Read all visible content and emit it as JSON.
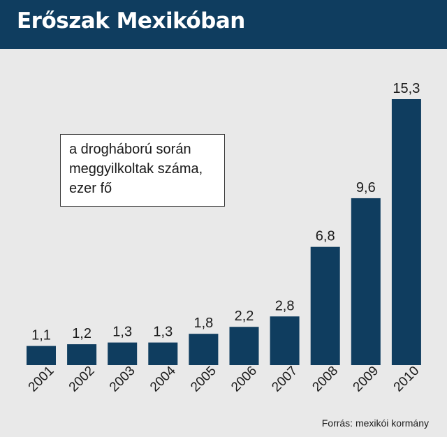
{
  "header": {
    "title": "Erőszak Mexikóban"
  },
  "legend": {
    "lines": [
      "a drogháború során",
      "meggyilkoltak száma,",
      "ezer fő"
    ]
  },
  "source": "Forrás: mexikói kormány",
  "colors": {
    "header_bg": "#0f3d5f",
    "bar": "#0f3d5f",
    "background": "#e9e9e9"
  },
  "chart_data": {
    "type": "bar",
    "categories": [
      "2001",
      "2002",
      "2003",
      "2004",
      "2005",
      "2006",
      "2007",
      "2008",
      "2009",
      "2010"
    ],
    "values": [
      1.1,
      1.2,
      1.3,
      1.3,
      1.8,
      2.2,
      2.8,
      6.8,
      9.6,
      15.3
    ],
    "value_labels": [
      "1,1",
      "1,2",
      "1,3",
      "1,3",
      "1,8",
      "2,2",
      "2,8",
      "6,8",
      "9,6",
      "15,3"
    ],
    "ylim": [
      0,
      15.3
    ],
    "grid": false,
    "legend_placement": "top-left"
  }
}
